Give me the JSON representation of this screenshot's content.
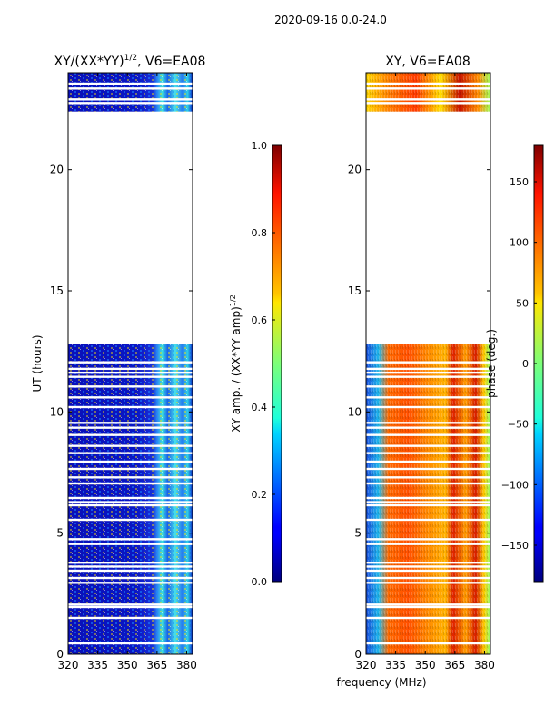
{
  "figure_title": "2020-09-16 0.0-24.0",
  "shared_xlabel": "frequency (MHz)",
  "chart_data": [
    {
      "type": "heatmap",
      "title_main": "XY/(XX*YY)",
      "title_exp": "1/2",
      "title_tail": ", V6=EA08",
      "xlabel": "",
      "ylabel": "UT (hours)",
      "xlim": [
        320,
        383
      ],
      "ylim": [
        0,
        24
      ],
      "xticks": [
        320,
        335,
        350,
        365,
        380
      ],
      "yticks": [
        0,
        5,
        10,
        15,
        20
      ],
      "data_blocks_hours": [
        [
          0,
          12.8
        ],
        [
          22.4,
          24
        ]
      ],
      "bright_band_mhz": [
        364,
        380
      ],
      "colorscale": "jet",
      "colorbar": {
        "label_main": "XY amp. / (XX*YY amp)",
        "label_exp": "1/2",
        "ticks": [
          0.0,
          0.2,
          0.4,
          0.6,
          0.8,
          1.0
        ],
        "tick_labels": [
          "0.0",
          "0.2",
          "0.4",
          "0.6",
          "0.8",
          "1.0"
        ],
        "range": [
          0,
          1
        ]
      }
    },
    {
      "type": "heatmap",
      "title_main": "XY, V6=EA08",
      "title_exp": "",
      "title_tail": "",
      "xlabel": "frequency (MHz)",
      "ylabel": "",
      "xlim": [
        320,
        383
      ],
      "ylim": [
        0,
        24
      ],
      "xticks": [
        320,
        335,
        350,
        365,
        380
      ],
      "yticks": [
        0,
        5,
        10,
        15,
        20
      ],
      "data_blocks_hours": [
        [
          0,
          12.8
        ],
        [
          22.4,
          24
        ]
      ],
      "colorscale": "jet",
      "colorbar": {
        "label_main": "phase (deg.)",
        "label_exp": "",
        "ticks": [
          -150,
          -100,
          -50,
          0,
          50,
          100,
          150
        ],
        "tick_labels": [
          "−150",
          "−100",
          "−50",
          "0",
          "50",
          "100",
          "150"
        ],
        "range": [
          -180,
          180
        ]
      }
    }
  ],
  "white_gap_hours": [
    0.45,
    1.5,
    1.95,
    2.05,
    2.95,
    3.15,
    3.45,
    3.62,
    3.78,
    4.55,
    4.75,
    5.55,
    6.15,
    6.28,
    6.45,
    7.05,
    7.3,
    7.65,
    7.95,
    8.3,
    8.6,
    9.05,
    9.35,
    9.55,
    10.2,
    10.6,
    11.05,
    11.45,
    11.62,
    11.78,
    12.05,
    22.75,
    22.9,
    23.35,
    23.55
  ]
}
